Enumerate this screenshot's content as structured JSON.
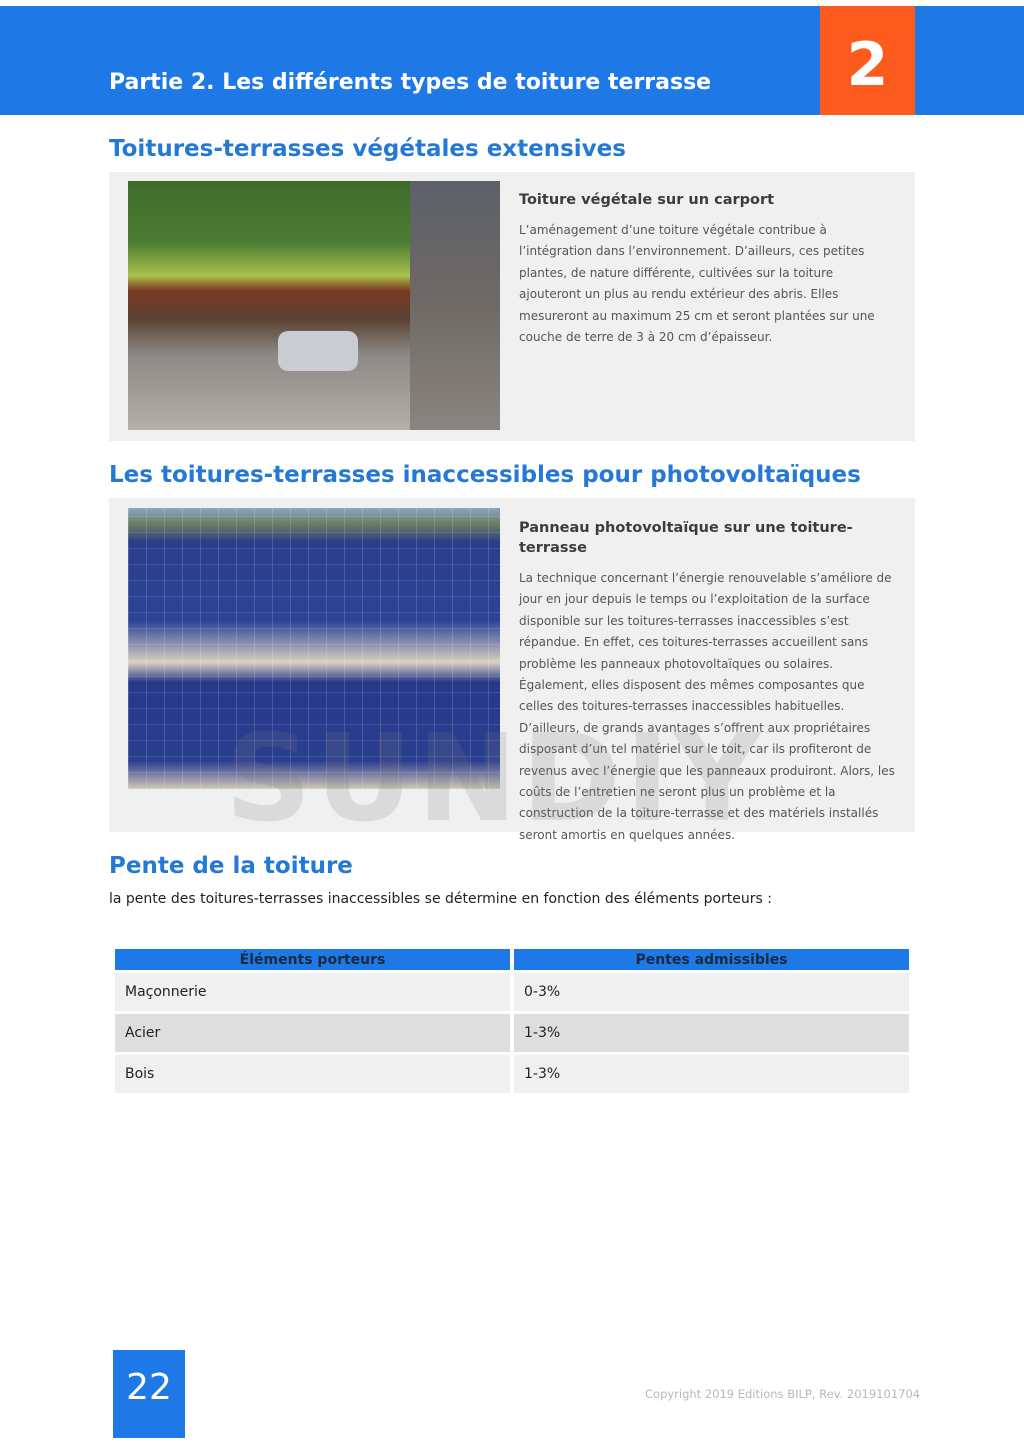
{
  "header": {
    "title": "Partie 2. Les différents types de toiture terrasse",
    "chapter_number": "2",
    "colors": {
      "band": "#1e78e6",
      "chapter_box": "#fd5a1e"
    }
  },
  "sections": [
    {
      "heading": "Toitures-terrasses végétales extensives",
      "figure": {
        "image": "green-roof-carport-photo",
        "caption_title": "Toiture végétale sur un carport",
        "caption_text": "L’aménagement d’une toiture végétale contribue à l’intégration dans l’environnement. D’ailleurs, ces petites plantes, de nature différente, cultivées sur la toiture ajouteront un plus au rendu extérieur des abris. Elles mesureront au maximum 25 cm et seront plantées sur une couche de terre de 3 à 20 cm d’épaisseur."
      }
    },
    {
      "heading": "Les toitures-terrasses inaccessibles pour photovoltaïques",
      "figure": {
        "image": "solar-panels-flat-roof-photo",
        "caption_title": "Panneau photovoltaïque sur une toiture-terrasse",
        "caption_text": "La technique concernant l’énergie renouvelable s’améliore de jour en jour depuis le temps ou l’exploitation de la surface disponible sur les toitures-terrasses inaccessibles s’est répandue. En effet, ces toitures-terrasses accueillent sans problème les panneaux photovoltaïques ou solaires. Également, elles disposent des mêmes composantes que celles des toitures-terrasses inaccessibles habituelles. D’ailleurs, de grands avantages s’offrent aux propriétaires disposant d’un tel matériel sur le toit, car ils profiteront de revenus avec l’énergie que les panneaux produiront. Alors, les coûts de l’entretien ne seront plus un problème et la construction de la toiture-terrasse et des matériels installés seront amortis en quelques années."
      }
    },
    {
      "heading": "Pente de la toiture",
      "intro": "la pente des toitures-terrasses inaccessibles se détermine en fonction des éléments porteurs :",
      "table": {
        "headers": [
          "Éléments porteurs",
          "Pentes admissibles"
        ],
        "rows": [
          [
            "Maçonnerie",
            "0-3%"
          ],
          [
            "Acier",
            "1-3%"
          ],
          [
            "Bois",
            "1-3%"
          ]
        ]
      }
    }
  ],
  "watermark": "SUNDIY",
  "footer": {
    "page_number": "22",
    "copyright": "Copyright 2019 Editions BILP, Rev. 2019101704"
  }
}
